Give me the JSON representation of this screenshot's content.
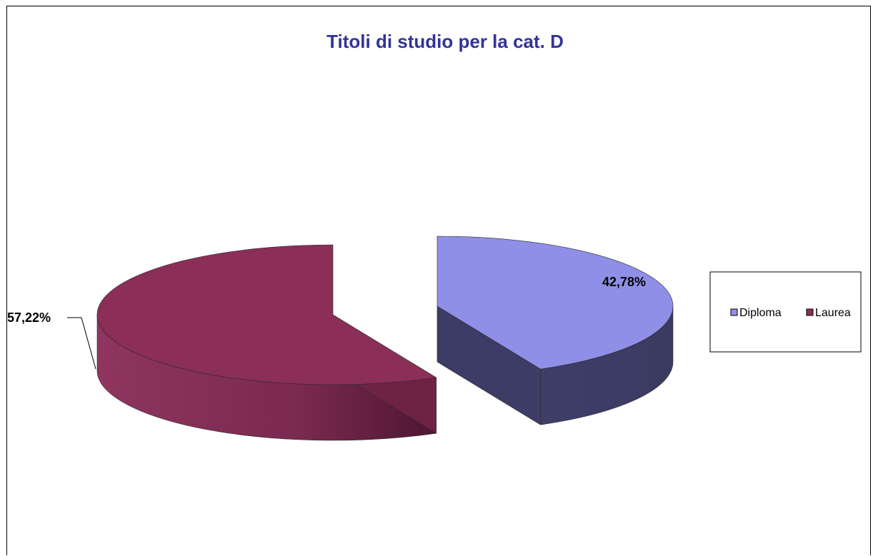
{
  "chart_data": {
    "type": "pie",
    "style": "3d-exploded",
    "title": "Titoli di studio per la cat. D",
    "title_color": "#333399",
    "categories": [
      "Diploma",
      "Laurea"
    ],
    "values": [
      42.78,
      57.22
    ],
    "labels": [
      "42,78%",
      "57,22%"
    ],
    "colors": [
      "#8f8fe8",
      "#8b2e58"
    ],
    "side_colors": [
      "#3c3c66",
      "#6e2345"
    ],
    "legend_position": "right"
  }
}
